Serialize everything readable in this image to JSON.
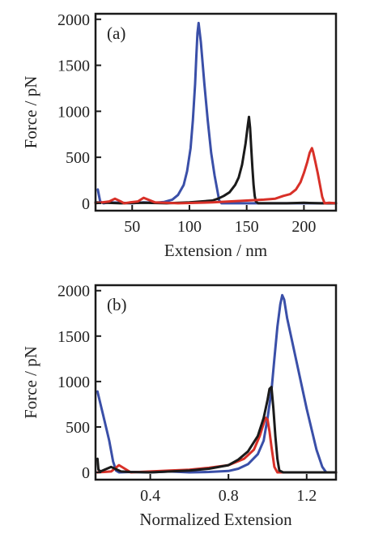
{
  "chart_data": [
    {
      "type": "line",
      "panel_label": "(a)",
      "xlabel": "Extension / nm",
      "ylabel": "Force / pN",
      "xlim": [
        18,
        228
      ],
      "ylim": [
        -80,
        2060
      ],
      "xticks": [
        50,
        100,
        150,
        200
      ],
      "yticks": [
        0,
        500,
        1000,
        1500,
        2000
      ],
      "grid": false,
      "series": [
        {
          "color": "#3a4fa8",
          "x": [
            20,
            22,
            25,
            30,
            40,
            50,
            60,
            70,
            78,
            85,
            90,
            95,
            98,
            101,
            103,
            105,
            106,
            107,
            108,
            110,
            113,
            116,
            119,
            122,
            125,
            126,
            128,
            140,
            160,
            180,
            200,
            228
          ],
          "y": [
            150,
            20,
            0,
            10,
            5,
            0,
            10,
            5,
            15,
            40,
            90,
            200,
            350,
            600,
            900,
            1300,
            1600,
            1850,
            1960,
            1750,
            1300,
            900,
            550,
            300,
            100,
            30,
            0,
            0,
            0,
            0,
            0,
            0
          ]
        },
        {
          "color": "#1a1a1a",
          "x": [
            18,
            40,
            60,
            80,
            100,
            120,
            125,
            130,
            135,
            140,
            143,
            146,
            149,
            151,
            152,
            153,
            154,
            155,
            156,
            157,
            158,
            160,
            170,
            185,
            200,
            215,
            228
          ],
          "y": [
            10,
            0,
            5,
            0,
            10,
            30,
            50,
            80,
            120,
            200,
            280,
            420,
            650,
            850,
            940,
            820,
            600,
            380,
            200,
            80,
            20,
            0,
            0,
            0,
            5,
            0,
            0
          ]
        },
        {
          "color": "#d83028",
          "x": [
            18,
            30,
            35,
            40,
            43,
            48,
            55,
            60,
            70,
            90,
            120,
            150,
            165,
            175,
            182,
            188,
            193,
            197,
            200,
            203,
            205,
            207,
            208,
            210,
            212,
            214,
            216,
            218,
            222,
            228
          ],
          "y": [
            0,
            20,
            50,
            20,
            0,
            10,
            20,
            60,
            10,
            0,
            10,
            30,
            40,
            50,
            80,
            100,
            150,
            230,
            330,
            450,
            550,
            600,
            560,
            450,
            330,
            200,
            70,
            0,
            5,
            0
          ]
        }
      ]
    },
    {
      "type": "line",
      "panel_label": "(b)",
      "xlabel": "Normalized Extension",
      "ylabel": "Force / pN",
      "xlim": [
        0.12,
        1.35
      ],
      "ylim": [
        -80,
        2060
      ],
      "xticks": [
        0.4,
        0.8,
        1.2
      ],
      "yticks": [
        0,
        500,
        1000,
        1500,
        2000
      ],
      "grid": false,
      "series": [
        {
          "color": "#3a4fa8",
          "x": [
            0.13,
            0.16,
            0.19,
            0.21,
            0.225,
            0.24,
            0.3,
            0.4,
            0.5,
            0.6,
            0.7,
            0.8,
            0.85,
            0.9,
            0.95,
            0.98,
            1.0,
            1.02,
            1.035,
            1.05,
            1.065,
            1.075,
            1.085,
            1.1,
            1.15,
            1.2,
            1.25,
            1.28,
            1.3,
            1.32,
            1.35
          ],
          "y": [
            890,
            620,
            350,
            120,
            20,
            0,
            5,
            0,
            10,
            0,
            5,
            15,
            40,
            90,
            200,
            350,
            600,
            900,
            1250,
            1600,
            1850,
            1950,
            1900,
            1700,
            1200,
            700,
            250,
            60,
            0,
            0,
            0
          ]
        },
        {
          "color": "#d83028",
          "x": [
            0.13,
            0.2,
            0.24,
            0.27,
            0.3,
            0.4,
            0.5,
            0.6,
            0.7,
            0.8,
            0.88,
            0.93,
            0.96,
            0.98,
            0.99,
            1.0,
            1.01,
            1.02,
            1.035,
            1.05,
            1.1,
            1.2,
            1.3,
            1.35
          ],
          "y": [
            0,
            10,
            80,
            40,
            0,
            10,
            20,
            30,
            50,
            80,
            150,
            250,
            400,
            540,
            600,
            580,
            450,
            280,
            60,
            0,
            0,
            0,
            0,
            0
          ]
        },
        {
          "color": "#1a1a1a",
          "x": [
            0.13,
            0.135,
            0.145,
            0.2,
            0.25,
            0.3,
            0.4,
            0.5,
            0.6,
            0.7,
            0.8,
            0.85,
            0.9,
            0.95,
            0.98,
            1.0,
            1.01,
            1.02,
            1.03,
            1.04,
            1.05,
            1.06,
            1.08,
            1.1,
            1.2,
            1.3,
            1.35
          ],
          "y": [
            150,
            30,
            10,
            60,
            10,
            5,
            0,
            10,
            20,
            40,
            80,
            140,
            230,
            400,
            600,
            800,
            920,
            940,
            700,
            400,
            150,
            20,
            0,
            0,
            0,
            0,
            0
          ]
        }
      ]
    }
  ]
}
